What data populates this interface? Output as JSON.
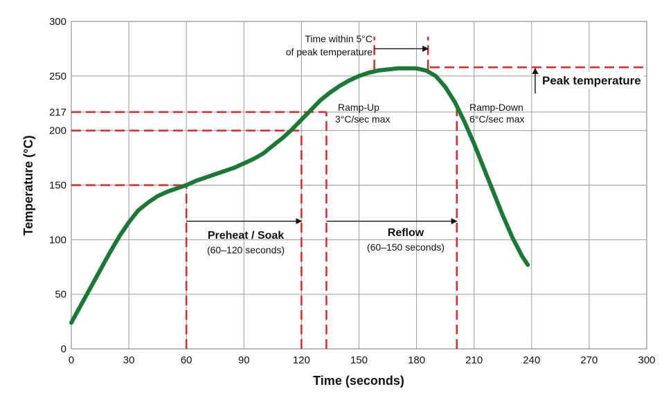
{
  "chart_data": {
    "type": "line",
    "xlabel": "Time (seconds)",
    "ylabel": "Temperature (°C)",
    "xlim": [
      0,
      300
    ],
    "ylim": [
      0,
      300
    ],
    "grid": true,
    "x_ticks": [
      "0",
      "30",
      "60",
      "90",
      "120",
      "150",
      "180",
      "210",
      "240",
      "270",
      "300"
    ],
    "y_ticks": [
      "0",
      "50",
      "100",
      "150",
      "200",
      "217",
      "250",
      "300"
    ],
    "colors": {
      "curve": "#1a7a35",
      "guides": "#e0262b",
      "grid": "#9a9a9a",
      "arrows": "#111111"
    },
    "series": [
      {
        "x": [
          0,
          5,
          10,
          15,
          20,
          25,
          30,
          35,
          40,
          45,
          50,
          55,
          60,
          65,
          70,
          75,
          80,
          85,
          90,
          95,
          100,
          105,
          110,
          115,
          120,
          125,
          130,
          135,
          140,
          145,
          150,
          155,
          160,
          165,
          170,
          175,
          180,
          185,
          190,
          195,
          200,
          205,
          210,
          215,
          220,
          225,
          230,
          235,
          238
        ],
        "y": [
          24,
          40,
          56,
          72,
          88,
          103,
          116,
          127,
          134,
          140,
          144,
          147,
          150,
          154,
          157,
          160,
          163,
          166,
          170,
          174,
          179,
          186,
          193,
          201,
          210,
          219,
          228,
          235,
          241,
          246,
          250,
          253,
          255,
          256,
          257,
          257,
          257,
          255,
          250,
          240,
          226,
          208,
          188,
          166,
          144,
          122,
          102,
          85,
          77
        ]
      }
    ],
    "reference_lines": {
      "horizontal": [
        {
          "y": 150,
          "x_end": 60
        },
        {
          "y": 200,
          "x_end": 120
        },
        {
          "y": 217,
          "x_end": 133
        },
        {
          "y": 258,
          "x_start": 187,
          "x_end": 300
        }
      ],
      "vertical": [
        {
          "x": 60,
          "y_end": 150
        },
        {
          "x": 120,
          "y_end": 200
        },
        {
          "x": 133,
          "y_end": 217
        },
        {
          "x": 201,
          "y_end": 220
        },
        {
          "x": 158,
          "y_start": 256,
          "y_end": 286
        },
        {
          "x": 186,
          "y_start": 256,
          "y_end": 286
        }
      ]
    },
    "annotations": {
      "time_within_line1": "Time within 5°C",
      "time_within_line2": "of peak temperature",
      "peak_temperature": "Peak temperature",
      "ramp_up_line1": "Ramp-Up",
      "ramp_up_line2": "3°C/sec max",
      "ramp_down_line1": "Ramp-Down",
      "ramp_down_line2": "6°C/sec max",
      "preheat_title": "Preheat / Soak",
      "preheat_range": "(60–120 seconds)",
      "reflow_title": "Reflow",
      "reflow_range": "(60–150 seconds)"
    }
  }
}
